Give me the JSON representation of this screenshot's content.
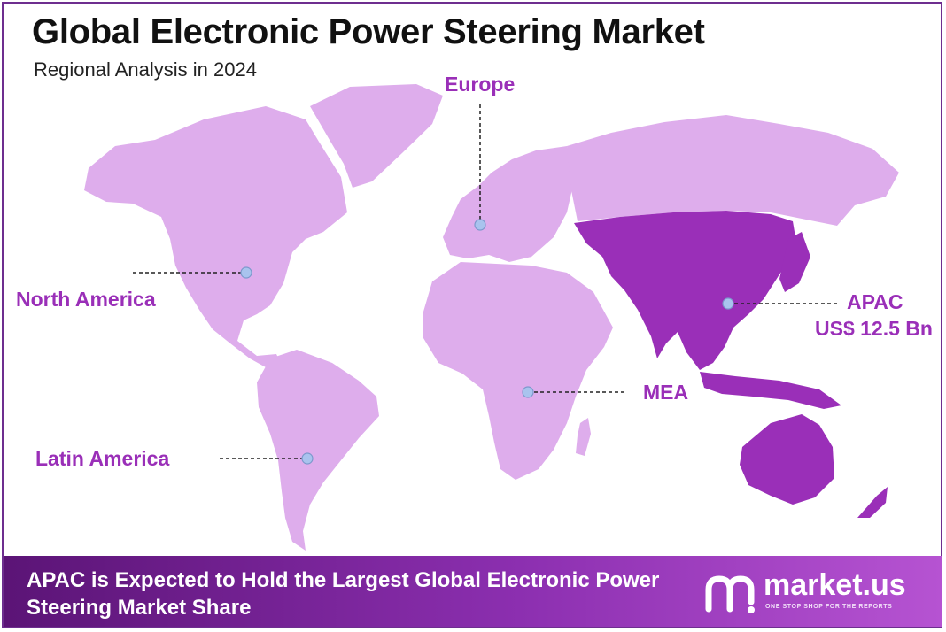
{
  "header": {
    "title": "Global Electronic Power Steering Market",
    "subtitle": "Regional Analysis in 2024"
  },
  "regions": {
    "north_america": "North America",
    "europe": "Europe",
    "apac": "APAC",
    "apac_value": "US$ 12.5 Bn",
    "mea": "MEA",
    "latin_america": "Latin America"
  },
  "footer": {
    "text": "APAC is Expected to Hold the Largest Global Electronic Power Steering Market Share"
  },
  "brand": {
    "name": "market.us",
    "tagline": "ONE STOP SHOP FOR THE REPORTS"
  },
  "colors": {
    "highlight_region": "#9a2fb8",
    "other_regions": "#deadec",
    "label_color": "#9a2fb8",
    "frame": "#6e2e8f"
  }
}
